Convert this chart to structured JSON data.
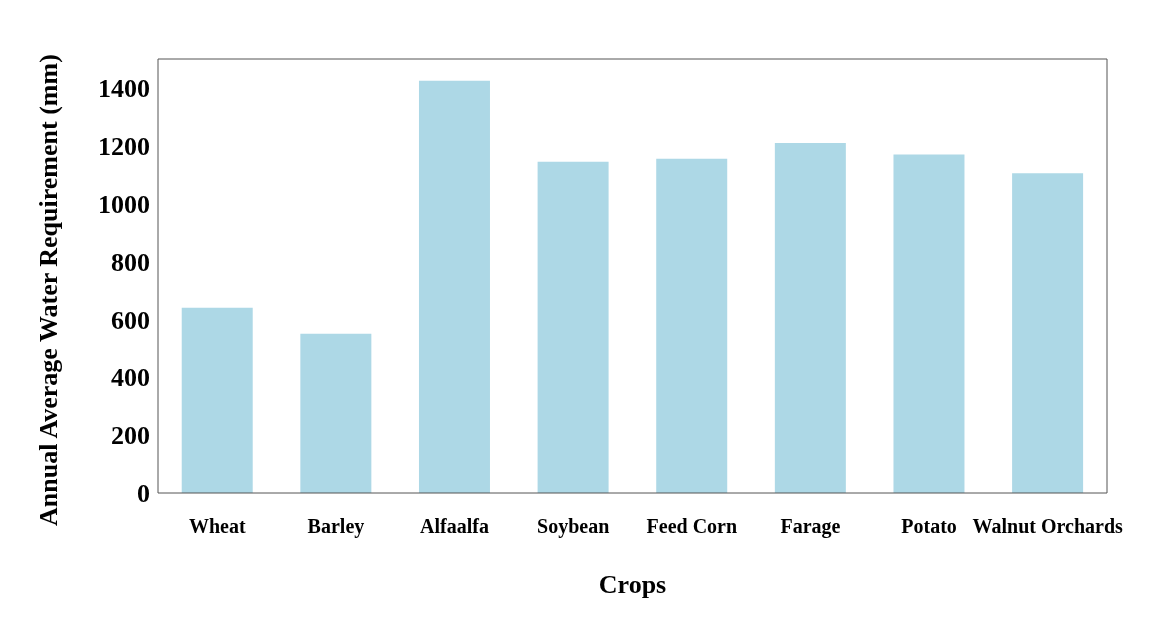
{
  "chart_data": {
    "type": "bar",
    "xlabel": "Crops",
    "ylabel": "Annual Average Water Requirement (mm)",
    "categories": [
      "Wheat",
      "Barley",
      "Alfaalfa",
      "Soybean",
      "Feed Corn",
      "Farage",
      "Potato",
      "Walnut Orchards"
    ],
    "values": [
      640,
      550,
      1425,
      1145,
      1155,
      1210,
      1170,
      1105
    ],
    "color": "#add8e6",
    "ylim": [
      0,
      1500
    ],
    "yticks": [
      0,
      200,
      400,
      600,
      800,
      1000,
      1200,
      1400
    ],
    "grid": false,
    "legend": false
  }
}
